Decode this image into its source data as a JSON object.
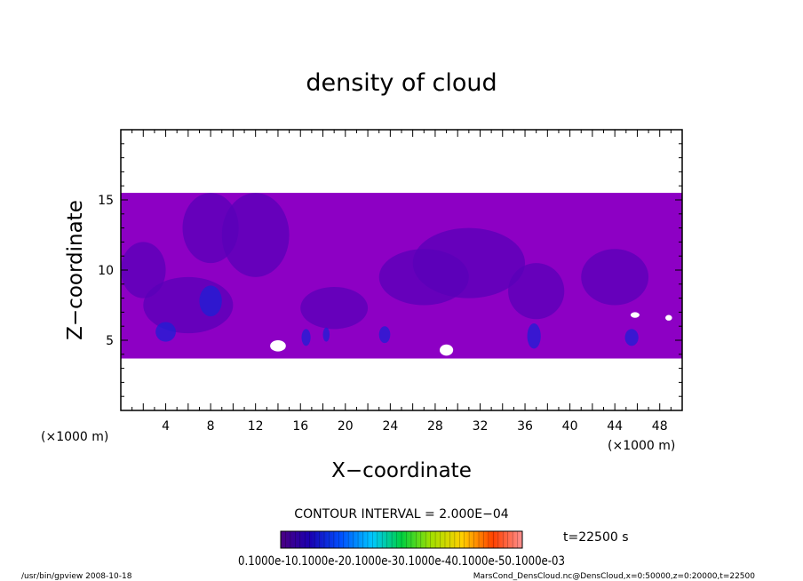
{
  "chart_data": {
    "type": "heatmap",
    "title": "density of cloud",
    "xlabel": "X−coordinate",
    "ylabel": "Z−coordinate",
    "x_unit": "(×1000 m)",
    "z_unit": "(×1000 m)",
    "xlim": [
      0,
      50
    ],
    "ylim": [
      0,
      20
    ],
    "x_ticks": [
      4,
      8,
      12,
      16,
      20,
      24,
      28,
      32,
      36,
      40,
      44,
      48
    ],
    "y_ticks": [
      5,
      10,
      15
    ],
    "cloud_layer": {
      "z_bottom": 3.7,
      "z_top": 15.5
    },
    "contour_interval": "CONTOUR INTERVAL = 2.000E−04",
    "time_label": "t=22500 s",
    "colorbar_label_text": "0.1000e-10.1000e-20.1000e-30.1000e-40.1000e-50.1000e-03",
    "colors": {
      "dominant": "#8d00c4",
      "dark": "#5a00b8",
      "blue": "#1d1fd6",
      "white": "#ffffff"
    }
  },
  "footer": {
    "left": "/usr/bin/gpview   2008-10-18",
    "right": "MarsCond_DensCloud.nc@DensCloud,x=0:50000,z=0:20000,t=22500"
  }
}
